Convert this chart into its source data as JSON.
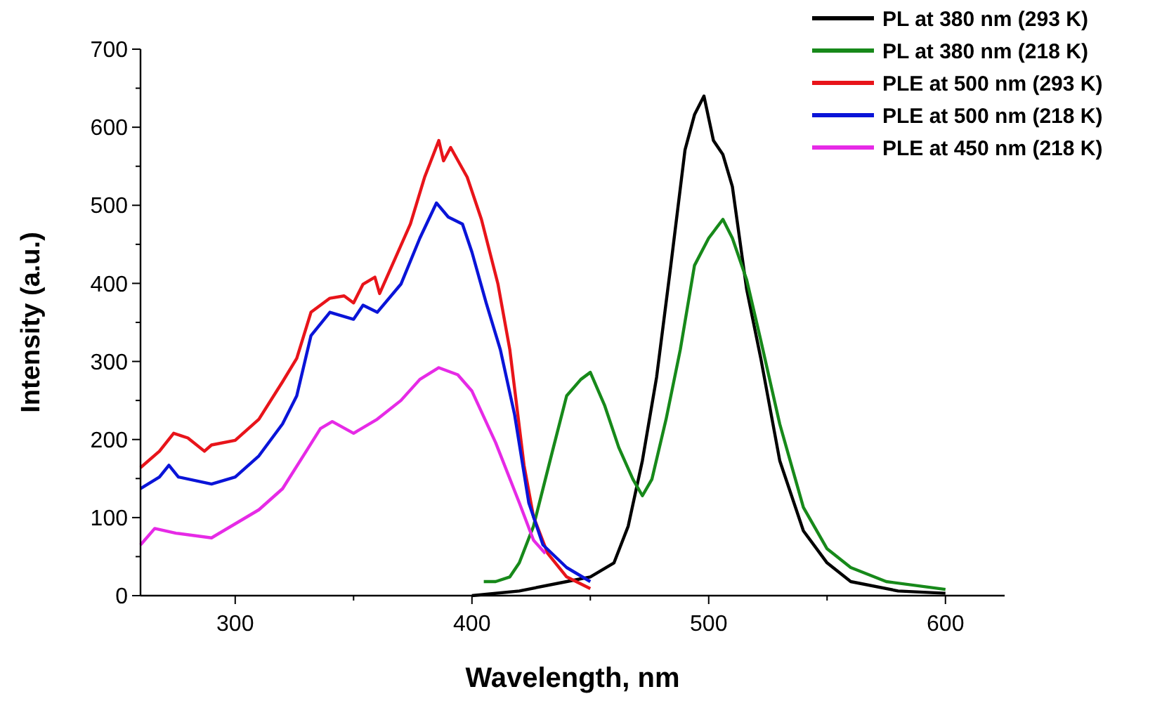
{
  "chart_data": {
    "type": "line",
    "xlabel": "Wavelength, nm",
    "ylabel": "Intensity (a.u.)",
    "xlim": [
      260,
      625
    ],
    "ylim": [
      0,
      700
    ],
    "xticks": [
      300,
      400,
      500,
      600
    ],
    "yticks": [
      0,
      100,
      200,
      300,
      400,
      500,
      600,
      700
    ],
    "legend": "top right",
    "grid": false,
    "marker": "none",
    "line_style": "solid",
    "series": [
      {
        "name": "PL at 380 nm (293 K)",
        "color": "#000000",
        "x": [
          400,
          420,
          440,
          450,
          460,
          466,
          472,
          478,
          484,
          490,
          494,
          498,
          502,
          506,
          510,
          516,
          522,
          530,
          540,
          550,
          560,
          580,
          600
        ],
        "values": [
          0,
          6,
          18,
          24,
          42,
          89,
          173,
          280,
          423,
          571,
          616,
          640,
          583,
          565,
          524,
          393,
          304,
          173,
          83,
          42,
          18,
          6,
          3
        ]
      },
      {
        "name": "PL at 380 nm (218 K)",
        "color": "#17891a",
        "x": [
          405,
          410,
          416,
          420,
          426,
          434,
          440,
          446,
          450,
          456,
          462,
          468,
          472,
          476,
          482,
          488,
          494,
          500,
          506,
          510,
          516,
          522,
          530,
          540,
          550,
          560,
          575,
          600
        ],
        "values": [
          18,
          18,
          24,
          42,
          89,
          185,
          256,
          277,
          286,
          244,
          190,
          149,
          128,
          149,
          226,
          315,
          423,
          458,
          482,
          458,
          405,
          327,
          220,
          113,
          60,
          36,
          18,
          8
        ]
      },
      {
        "name": "PLE at 500 nm (293 K)",
        "color": "#e8141a",
        "x": [
          260,
          268,
          274,
          280,
          287,
          290,
          300,
          310,
          320,
          326,
          332,
          340,
          346,
          350,
          354,
          359,
          361,
          368,
          374,
          380,
          386,
          388,
          391,
          398,
          404,
          411,
          416,
          422,
          426,
          432,
          440,
          450
        ],
        "values": [
          164,
          185,
          208,
          202,
          185,
          193,
          199,
          226,
          274,
          304,
          363,
          381,
          384,
          375,
          399,
          408,
          387,
          435,
          476,
          536,
          583,
          557,
          574,
          536,
          482,
          399,
          315,
          167,
          101,
          54,
          24,
          9
        ]
      },
      {
        "name": "PLE at 500 nm (218 K)",
        "color": "#0a14d8",
        "x": [
          260,
          268,
          272,
          276,
          290,
          300,
          310,
          320,
          326,
          332,
          340,
          350,
          354,
          360,
          370,
          378,
          385,
          390,
          396,
          400,
          406,
          412,
          418,
          424,
          430,
          440,
          450
        ],
        "values": [
          137,
          152,
          167,
          152,
          143,
          152,
          179,
          220,
          256,
          333,
          363,
          354,
          372,
          363,
          399,
          458,
          503,
          485,
          476,
          440,
          375,
          315,
          232,
          119,
          65,
          36,
          18
        ]
      },
      {
        "name": "PLE at 450 nm (218 K)",
        "color": "#e62ae6",
        "x": [
          260,
          266,
          275,
          290,
          300,
          310,
          320,
          330,
          336,
          341,
          350,
          360,
          370,
          378,
          386,
          394,
          400,
          410,
          420,
          426,
          431
        ],
        "values": [
          65,
          86,
          80,
          74,
          92,
          110,
          137,
          185,
          214,
          223,
          208,
          226,
          250,
          277,
          292,
          283,
          262,
          196,
          119,
          71,
          54
        ]
      }
    ]
  }
}
